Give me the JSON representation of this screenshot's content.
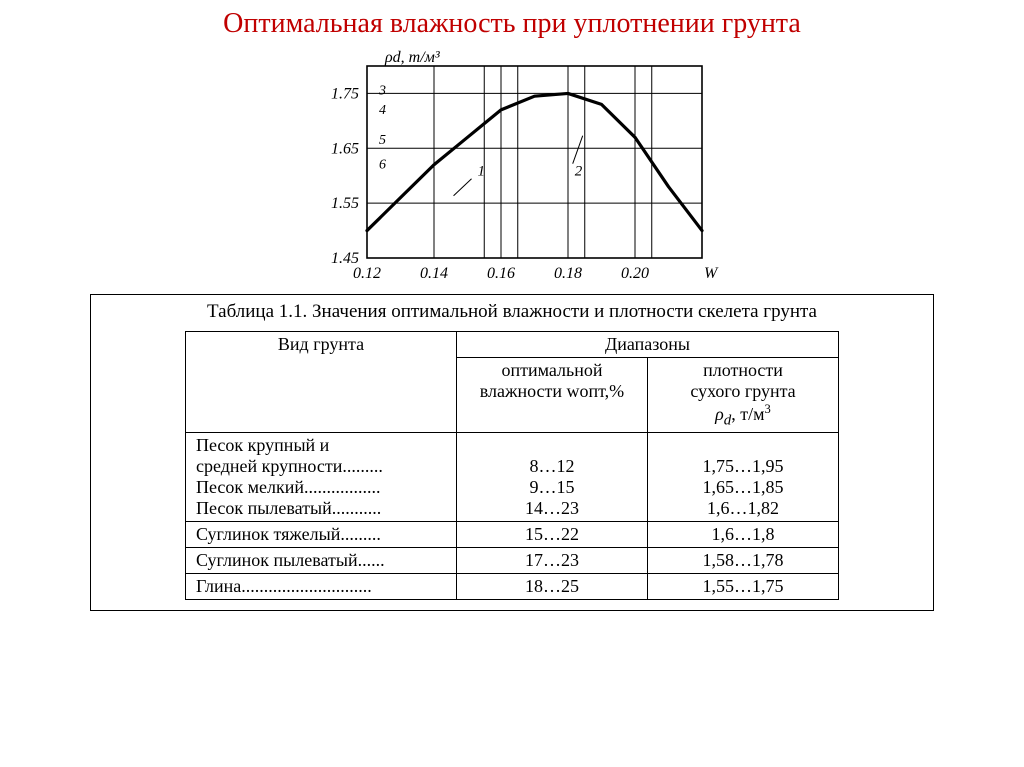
{
  "title": "Оптимальная влажность при уплотнении грунта",
  "title_color": "#c00000",
  "chart": {
    "type": "line",
    "y_axis_label": "ρd, т/м³",
    "x_axis_label": "W",
    "xlim": [
      0.12,
      0.22
    ],
    "ylim": [
      1.45,
      1.8
    ],
    "xticks": [
      0.12,
      0.14,
      0.16,
      0.18,
      0.2
    ],
    "yticks": [
      1.45,
      1.55,
      1.65,
      1.75
    ],
    "inner_vlines": [
      0.155,
      0.165,
      0.18,
      0.185,
      0.2,
      0.205
    ],
    "right_numbers": [
      "3",
      "4",
      "5",
      "6"
    ],
    "right_numbers_y": [
      1.755,
      1.72,
      1.665,
      1.62
    ],
    "curve_label_1": "1",
    "curve_label_1_xy": [
      0.153,
      1.6
    ],
    "curve_label_2": "2",
    "curve_label_2_xy": [
      0.182,
      1.6
    ],
    "curve_points": [
      [
        0.12,
        1.5
      ],
      [
        0.13,
        1.56
      ],
      [
        0.14,
        1.62
      ],
      [
        0.15,
        1.67
      ],
      [
        0.16,
        1.72
      ],
      [
        0.17,
        1.745
      ],
      [
        0.18,
        1.75
      ],
      [
        0.19,
        1.73
      ],
      [
        0.2,
        1.67
      ],
      [
        0.21,
        1.58
      ],
      [
        0.22,
        1.5
      ]
    ],
    "line_color": "#000000",
    "line_width": 3.2,
    "grid_color": "#000000",
    "background": "#ffffff",
    "tick_font_size": 16
  },
  "table": {
    "caption": "Таблица 1.1. Значения оптимальной влажности и плотности скелета грунта",
    "header_col1": "Вид грунта",
    "header_span": "Диапазоны",
    "header_col2": "оптимальной влажности wопт,%",
    "header_col3_line1": "плотности",
    "header_col3_line2": "сухого грунта",
    "header_col3_line3": "ρd, т/м³",
    "rows": [
      {
        "type_lines": [
          "Песок крупный и",
          "средней крупности.........",
          "Песок мелкий.................",
          "Песок пылеватый..........."
        ],
        "w_lines": [
          "",
          "8…12",
          "9…15",
          "14…23"
        ],
        "rho_lines": [
          "",
          "1,75…1,95",
          "1,65…1,85",
          "1,6…1,82"
        ]
      },
      {
        "type_lines": [
          "Суглинок тяжелый........."
        ],
        "w_lines": [
          "15…22"
        ],
        "rho_lines": [
          "1,6…1,8"
        ]
      },
      {
        "type_lines": [
          "Суглинок пылеватый......"
        ],
        "w_lines": [
          "17…23"
        ],
        "rho_lines": [
          "1,58…1,78"
        ]
      },
      {
        "type_lines": [
          "Глина............................."
        ],
        "w_lines": [
          "18…25"
        ],
        "rho_lines": [
          "1,55…1,75"
        ]
      }
    ]
  }
}
